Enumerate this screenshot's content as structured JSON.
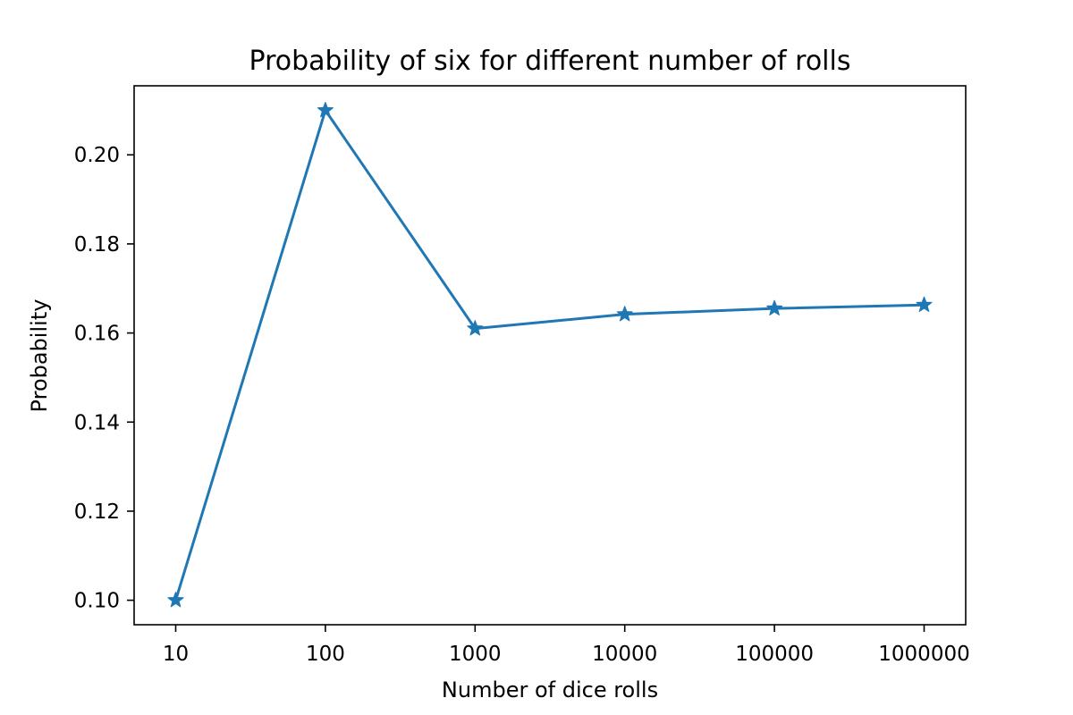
{
  "chart_data": {
    "type": "line",
    "title": "Probability of six for different number of rolls",
    "xlabel": "Number of dice rolls",
    "ylabel": "Probability",
    "categories": [
      "10",
      "100",
      "1000",
      "10000",
      "100000",
      "1000000"
    ],
    "series": [
      {
        "values": [
          0.1,
          0.21,
          0.161,
          0.1642,
          0.1655,
          0.1663
        ],
        "color": "#1f77b4",
        "marker": "star"
      }
    ],
    "yticks": [
      "0.10",
      "0.12",
      "0.14",
      "0.16",
      "0.18",
      "0.20"
    ],
    "ylim": [
      0.0945,
      0.2155
    ],
    "grid": false,
    "legend": false
  }
}
